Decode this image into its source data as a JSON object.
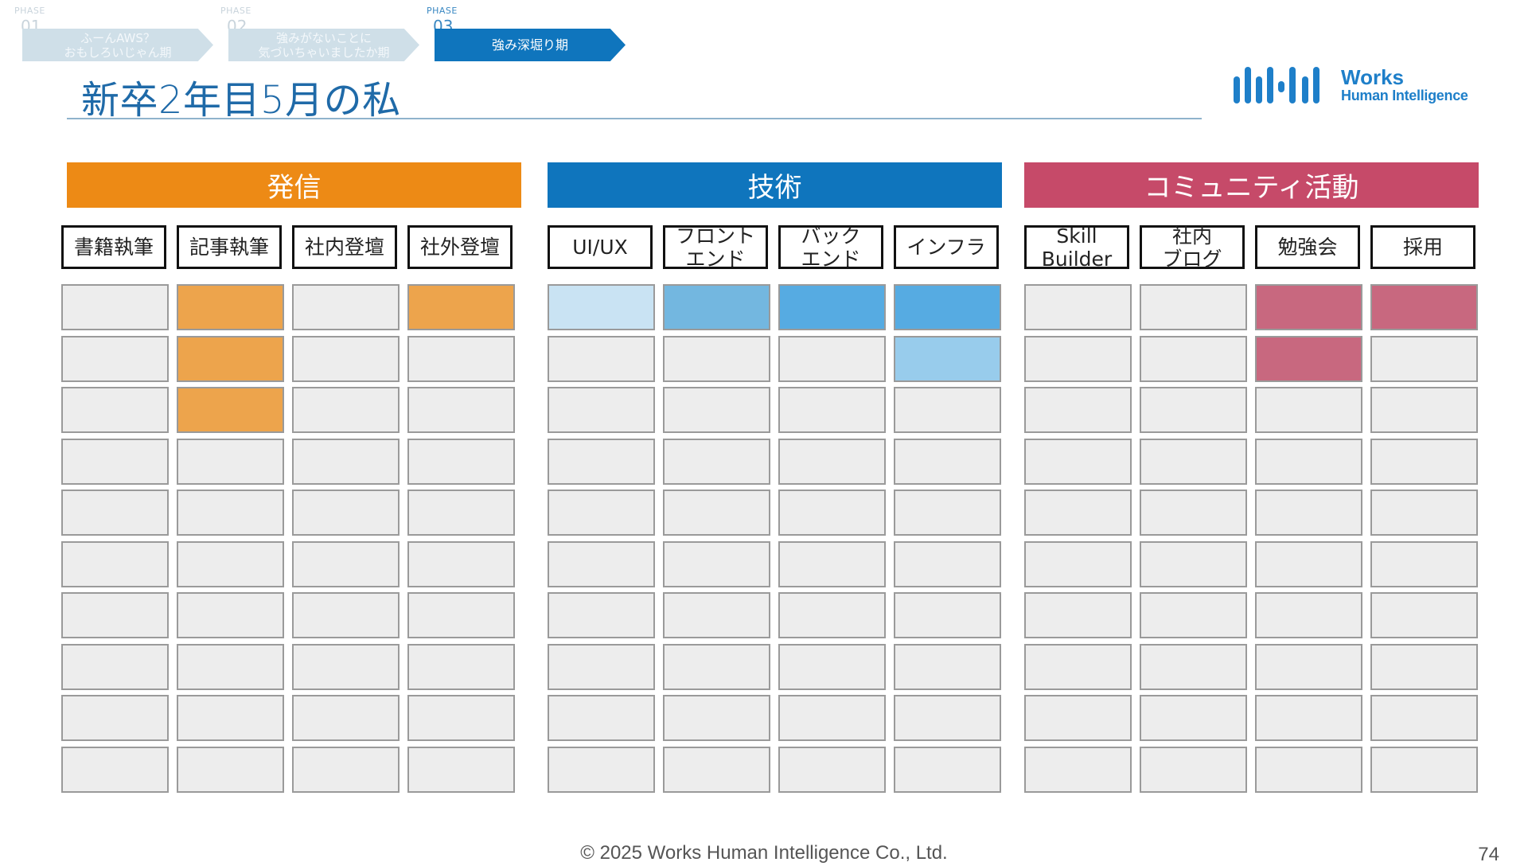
{
  "phases": [
    {
      "label": "PHASE",
      "number": "01",
      "line1": "ふーんAWS？",
      "line2": "おもしろいじゃん期",
      "active": false
    },
    {
      "label": "PHASE",
      "number": "02",
      "line1": "強みがないことに",
      "line2": "気づいちゃいましたか期",
      "active": false
    },
    {
      "label": "PHASE",
      "number": "03",
      "line1": "強み深堀り期",
      "line2": "",
      "active": true
    }
  ],
  "title": "新卒2年目5月の私",
  "logo": {
    "line1": "Works",
    "line2": "Human Intelligence"
  },
  "categories": [
    {
      "name": "発信",
      "color": "#ed8a15",
      "columns": [
        {
          "line1": "書籍執筆",
          "line2": ""
        },
        {
          "line1": "記事執筆",
          "line2": ""
        },
        {
          "line1": "社内登壇",
          "line2": ""
        },
        {
          "line1": "社外登壇",
          "line2": ""
        }
      ]
    },
    {
      "name": "技術",
      "color": "#0f75bd",
      "columns": [
        {
          "line1": "UI/UX",
          "line2": ""
        },
        {
          "line1": "フロント",
          "line2": "エンド"
        },
        {
          "line1": "バック",
          "line2": "エンド"
        },
        {
          "line1": "インフラ",
          "line2": ""
        }
      ]
    },
    {
      "name": "コミュニティ活動",
      "color": "#c64a69",
      "columns": [
        {
          "line1": "Skill",
          "line2": "Builder"
        },
        {
          "line1": "社内",
          "line2": "ブログ"
        },
        {
          "line1": "勉強会",
          "line2": ""
        },
        {
          "line1": "採用",
          "line2": ""
        }
      ]
    }
  ],
  "grid_rows": 10,
  "cell_colors": {
    "empty": "#ededed",
    "orange": "#eda44c",
    "blue_light": "#c9e3f3",
    "blue_mid": "#73b7e0",
    "blue_strong": "#56abe2",
    "blue_soft": "#98ccec",
    "pink": "#c8687f"
  },
  "filled_levels": [
    [
      "empty",
      "empty",
      "empty",
      "empty",
      "empty",
      "empty",
      "empty",
      "empty",
      "empty",
      "empty"
    ],
    [
      "orange",
      "orange",
      "orange",
      "empty",
      "empty",
      "empty",
      "empty",
      "empty",
      "empty",
      "empty"
    ],
    [
      "empty",
      "empty",
      "empty",
      "empty",
      "empty",
      "empty",
      "empty",
      "empty",
      "empty",
      "empty"
    ],
    [
      "orange",
      "empty",
      "empty",
      "empty",
      "empty",
      "empty",
      "empty",
      "empty",
      "empty",
      "empty"
    ],
    [
      "blue_light",
      "empty",
      "empty",
      "empty",
      "empty",
      "empty",
      "empty",
      "empty",
      "empty",
      "empty"
    ],
    [
      "blue_mid",
      "empty",
      "empty",
      "empty",
      "empty",
      "empty",
      "empty",
      "empty",
      "empty",
      "empty"
    ],
    [
      "blue_strong",
      "empty",
      "empty",
      "empty",
      "empty",
      "empty",
      "empty",
      "empty",
      "empty",
      "empty"
    ],
    [
      "blue_strong",
      "blue_soft",
      "empty",
      "empty",
      "empty",
      "empty",
      "empty",
      "empty",
      "empty",
      "empty"
    ],
    [
      "empty",
      "empty",
      "empty",
      "empty",
      "empty",
      "empty",
      "empty",
      "empty",
      "empty",
      "empty"
    ],
    [
      "empty",
      "empty",
      "empty",
      "empty",
      "empty",
      "empty",
      "empty",
      "empty",
      "empty",
      "empty"
    ],
    [
      "pink",
      "pink",
      "empty",
      "empty",
      "empty",
      "empty",
      "empty",
      "empty",
      "empty",
      "empty"
    ],
    [
      "pink",
      "empty",
      "empty",
      "empty",
      "empty",
      "empty",
      "empty",
      "empty",
      "empty",
      "empty"
    ]
  ],
  "footer": "© 2025 Works Human Intelligence Co., Ltd.",
  "page_number": "74"
}
